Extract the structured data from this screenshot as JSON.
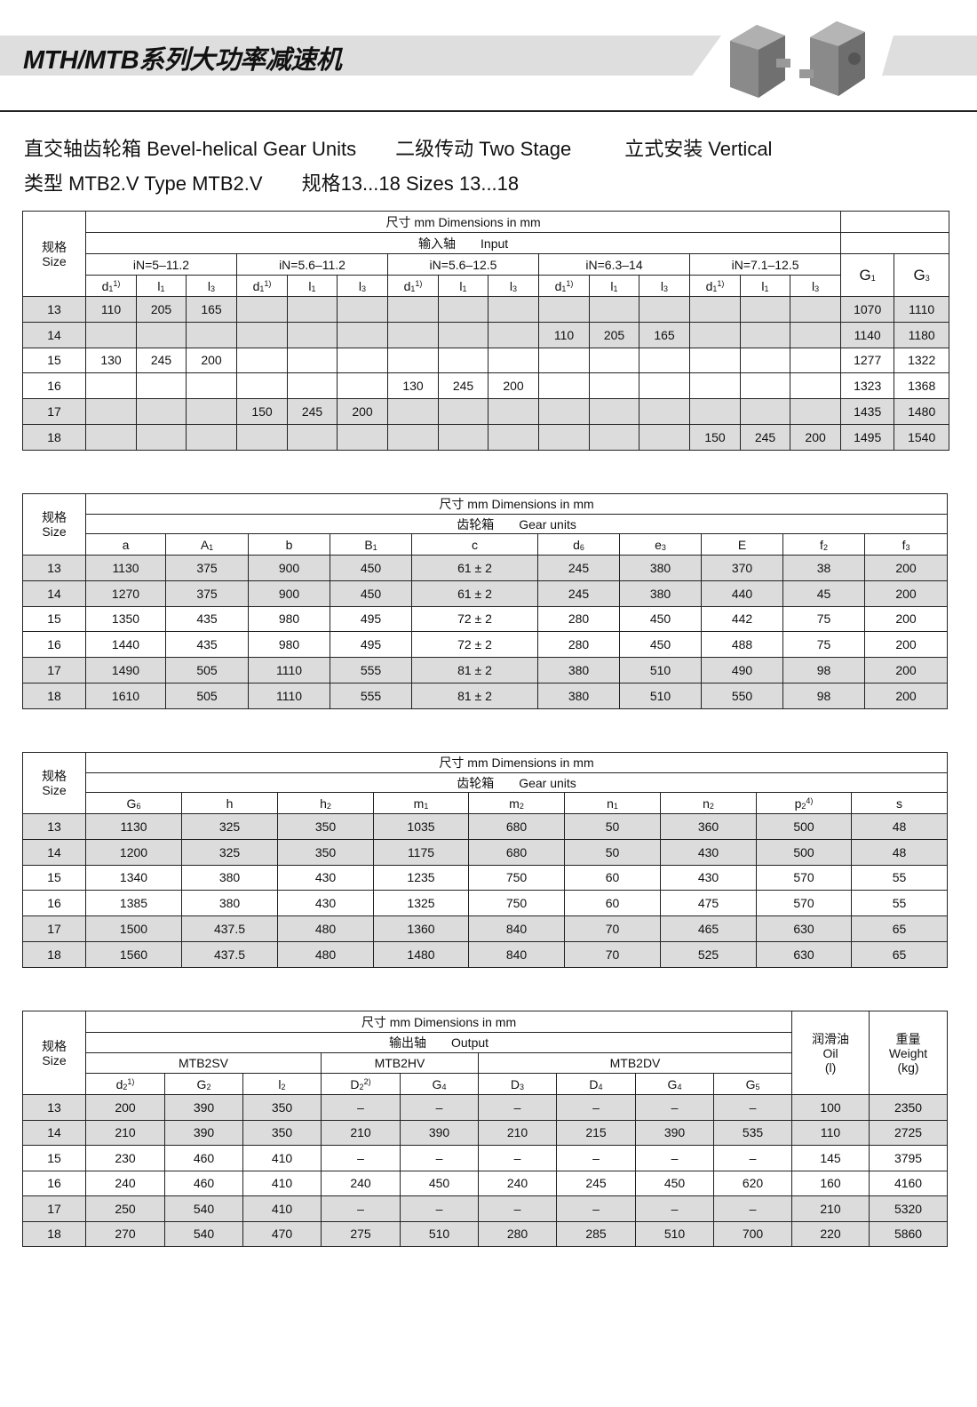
{
  "header": {
    "title": "MTH/MTB系列大功率减速机",
    "product_image": "gear-units-photo"
  },
  "subtitle": {
    "line1": [
      "直交轴齿轮箱 Bevel-helical Gear Units",
      "二级传动 Two Stage",
      "立式安装 Vertical"
    ],
    "line2": [
      "类型 MTB2.V Type MTB2.V",
      "规格13...18 Sizes 13...18"
    ]
  },
  "colors": {
    "row_shade": "#dcdcdc",
    "band": "#dedede",
    "border": "#222222"
  },
  "tables": [
    {
      "size_label": [
        "规格",
        "Size"
      ],
      "dims_label": "尺寸 mm Dimensions in mm",
      "section_label": "输入轴　　Input",
      "groups": [
        "iN=5–11.2",
        "iN=5.6–11.2",
        "iN=5.6–12.5",
        "iN=6.3–14",
        "iN=7.1–12.5"
      ],
      "extra_cols": [
        {
          "b": "G",
          "s": "1"
        },
        {
          "b": "G",
          "s": "3"
        }
      ],
      "cols": [
        {
          "b": "d",
          "s": "1",
          "p": "1)"
        },
        {
          "b": "l",
          "s": "1"
        },
        {
          "b": "l",
          "s": "3"
        }
      ],
      "rows": [
        [
          "13",
          "110",
          "205",
          "165",
          "",
          "",
          "",
          "",
          "",
          "",
          "",
          "",
          "",
          "",
          "",
          "",
          "1070",
          "1110"
        ],
        [
          "14",
          "",
          "",
          "",
          "",
          "",
          "",
          "",
          "",
          "",
          "110",
          "205",
          "165",
          "",
          "",
          "",
          "1140",
          "1180"
        ],
        [
          "15",
          "130",
          "245",
          "200",
          "",
          "",
          "",
          "",
          "",
          "",
          "",
          "",
          "",
          "",
          "",
          "",
          "1277",
          "1322"
        ],
        [
          "16",
          "",
          "",
          "",
          "",
          "",
          "",
          "130",
          "245",
          "200",
          "",
          "",
          "",
          "",
          "",
          "",
          "1323",
          "1368"
        ],
        [
          "17",
          "",
          "",
          "",
          "150",
          "245",
          "200",
          "",
          "",
          "",
          "",
          "",
          "",
          "",
          "",
          "",
          "1435",
          "1480"
        ],
        [
          "18",
          "",
          "",
          "",
          "",
          "",
          "",
          "",
          "",
          "",
          "",
          "",
          "",
          "150",
          "245",
          "200",
          "1495",
          "1540"
        ]
      ]
    },
    {
      "size_label": [
        "规格",
        "Size"
      ],
      "dims_label": "尺寸 mm Dimensions in mm",
      "section_label": "齿轮箱　　Gear units",
      "cols": [
        {
          "b": "a"
        },
        {
          "b": "A",
          "s": "1"
        },
        {
          "b": "b"
        },
        {
          "b": "B",
          "s": "1"
        },
        {
          "b": "c"
        },
        {
          "b": "d",
          "s": "6"
        },
        {
          "b": "e",
          "s": "3"
        },
        {
          "b": "E"
        },
        {
          "b": "f",
          "s": "2"
        },
        {
          "b": "f",
          "s": "3"
        }
      ],
      "rows": [
        [
          "13",
          "1130",
          "375",
          "900",
          "450",
          "61 ± 2",
          "245",
          "380",
          "370",
          "38",
          "200"
        ],
        [
          "14",
          "1270",
          "375",
          "900",
          "450",
          "61 ± 2",
          "245",
          "380",
          "440",
          "45",
          "200"
        ],
        [
          "15",
          "1350",
          "435",
          "980",
          "495",
          "72 ± 2",
          "280",
          "450",
          "442",
          "75",
          "200"
        ],
        [
          "16",
          "1440",
          "435",
          "980",
          "495",
          "72 ± 2",
          "280",
          "450",
          "488",
          "75",
          "200"
        ],
        [
          "17",
          "1490",
          "505",
          "1110",
          "555",
          "81 ± 2",
          "380",
          "510",
          "490",
          "98",
          "200"
        ],
        [
          "18",
          "1610",
          "505",
          "1110",
          "555",
          "81 ± 2",
          "380",
          "510",
          "550",
          "98",
          "200"
        ]
      ]
    },
    {
      "size_label": [
        "规格",
        "Size"
      ],
      "dims_label": "尺寸 mm Dimensions in mm",
      "section_label": "齿轮箱　　Gear units",
      "cols": [
        {
          "b": "G",
          "s": "6"
        },
        {
          "b": "h"
        },
        {
          "b": "h",
          "s": "2"
        },
        {
          "b": "m",
          "s": "1"
        },
        {
          "b": "m",
          "s": "2"
        },
        {
          "b": "n",
          "s": "1"
        },
        {
          "b": "n",
          "s": "2"
        },
        {
          "b": "p",
          "s": "2",
          "p": "4)"
        },
        {
          "b": "s"
        }
      ],
      "rows": [
        [
          "13",
          "1130",
          "325",
          "350",
          "1035",
          "680",
          "50",
          "360",
          "500",
          "48"
        ],
        [
          "14",
          "1200",
          "325",
          "350",
          "1175",
          "680",
          "50",
          "430",
          "500",
          "48"
        ],
        [
          "15",
          "1340",
          "380",
          "430",
          "1235",
          "750",
          "60",
          "430",
          "570",
          "55"
        ],
        [
          "16",
          "1385",
          "380",
          "430",
          "1325",
          "750",
          "60",
          "475",
          "570",
          "55"
        ],
        [
          "17",
          "1500",
          "437.5",
          "480",
          "1360",
          "840",
          "70",
          "465",
          "630",
          "65"
        ],
        [
          "18",
          "1560",
          "437.5",
          "480",
          "1480",
          "840",
          "70",
          "525",
          "630",
          "65"
        ]
      ]
    },
    {
      "size_label": [
        "规格",
        "Size"
      ],
      "dims_label": "尺寸 mm Dimensions in mm",
      "section_label": "输出轴　　Output",
      "groups": [
        {
          "label": "MTB2SV",
          "span": 3
        },
        {
          "label": "MTB2HV",
          "span": 2
        },
        {
          "label": "MTB2DV",
          "span": 4
        }
      ],
      "oil_label": [
        "润滑油",
        "Oil",
        "(l)"
      ],
      "weight_label": [
        "重量",
        "Weight",
        "(kg)"
      ],
      "cols": [
        {
          "b": "d",
          "s": "2",
          "p": "1)"
        },
        {
          "b": "G",
          "s": "2"
        },
        {
          "b": "l",
          "s": "2"
        },
        {
          "b": "D",
          "s": "2",
          "p": "2)"
        },
        {
          "b": "G",
          "s": "4"
        },
        {
          "b": "D",
          "s": "3"
        },
        {
          "b": "D",
          "s": "4"
        },
        {
          "b": "G",
          "s": "4"
        },
        {
          "b": "G",
          "s": "5"
        }
      ],
      "rows": [
        [
          "13",
          "200",
          "390",
          "350",
          "–",
          "–",
          "–",
          "–",
          "–",
          "–",
          "100",
          "2350"
        ],
        [
          "14",
          "210",
          "390",
          "350",
          "210",
          "390",
          "210",
          "215",
          "390",
          "535",
          "110",
          "2725"
        ],
        [
          "15",
          "230",
          "460",
          "410",
          "–",
          "–",
          "–",
          "–",
          "–",
          "–",
          "145",
          "3795"
        ],
        [
          "16",
          "240",
          "460",
          "410",
          "240",
          "450",
          "240",
          "245",
          "450",
          "620",
          "160",
          "4160"
        ],
        [
          "17",
          "250",
          "540",
          "410",
          "–",
          "–",
          "–",
          "–",
          "–",
          "–",
          "210",
          "5320"
        ],
        [
          "18",
          "270",
          "540",
          "470",
          "275",
          "510",
          "280",
          "285",
          "510",
          "700",
          "220",
          "5860"
        ]
      ]
    }
  ]
}
